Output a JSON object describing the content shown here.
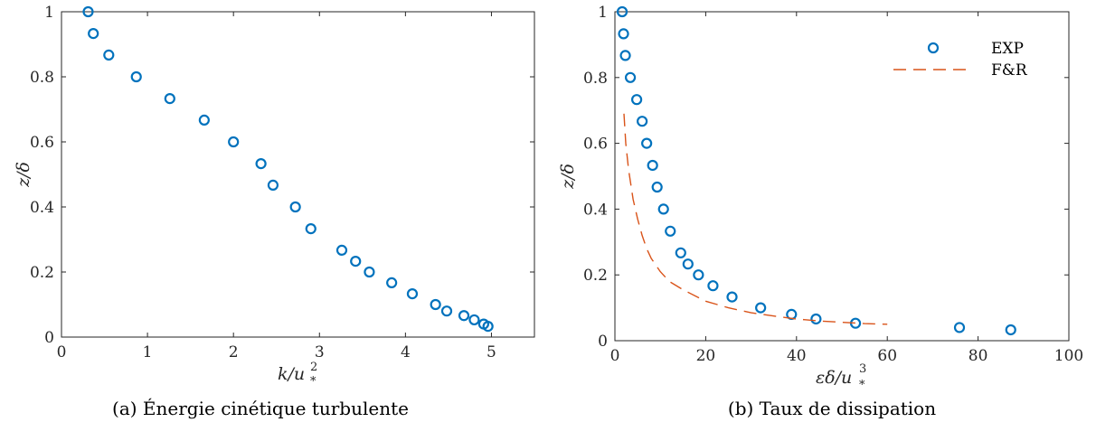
{
  "captions": {
    "a": "(a) Énergie cinétique turbulente",
    "b": "(b) Taux de dissipation"
  },
  "colors": {
    "exp": "#0072BD",
    "fr": "#D95319",
    "axis": "#262626"
  },
  "chart_data": [
    {
      "type": "scatter",
      "xlabel": "k/u²*",
      "ylabel": "z/δ",
      "xlim": [
        0,
        5.5
      ],
      "ylim": [
        0,
        1
      ],
      "xticks": [
        0,
        1,
        2,
        3,
        4,
        5
      ],
      "yticks": [
        0,
        0.2,
        0.4,
        0.6,
        0.8,
        1
      ],
      "series": [
        {
          "marker": "circle",
          "color": "#0072BD",
          "x": [
            0.31,
            0.37,
            0.55,
            0.87,
            1.26,
            1.66,
            2.0,
            2.32,
            2.46,
            2.72,
            2.9,
            3.26,
            3.42,
            3.58,
            3.84,
            4.08,
            4.35,
            4.48,
            4.68,
            4.8,
            4.91,
            4.96
          ],
          "y": [
            1.0,
            0.933,
            0.867,
            0.8,
            0.733,
            0.667,
            0.6,
            0.533,
            0.467,
            0.4,
            0.333,
            0.267,
            0.233,
            0.2,
            0.167,
            0.133,
            0.1,
            0.08,
            0.066,
            0.053,
            0.04,
            0.033
          ]
        }
      ]
    },
    {
      "type": "line",
      "xlabel": "εδ/u³*",
      "ylabel": "z/δ",
      "xlim": [
        0,
        100
      ],
      "ylim": [
        0,
        1
      ],
      "xticks": [
        0,
        20,
        40,
        60,
        80,
        100
      ],
      "yticks": [
        0,
        0.2,
        0.4,
        0.6,
        0.8,
        1
      ],
      "legend_position": "top-right",
      "series": [
        {
          "name": "EXP",
          "marker": "circle",
          "style": "markers",
          "color": "#0072BD",
          "x": [
            1.6,
            1.9,
            2.3,
            3.4,
            4.8,
            6.0,
            7.0,
            8.3,
            9.3,
            10.7,
            12.2,
            14.5,
            16.1,
            18.4,
            21.6,
            25.8,
            32.1,
            38.9,
            44.3,
            53.0,
            75.9,
            87.2
          ],
          "y": [
            1.0,
            0.933,
            0.867,
            0.8,
            0.733,
            0.667,
            0.6,
            0.533,
            0.467,
            0.4,
            0.333,
            0.267,
            0.233,
            0.2,
            0.167,
            0.133,
            0.1,
            0.08,
            0.066,
            0.053,
            0.04,
            0.033
          ]
        },
        {
          "name": "F&R",
          "style": "dashed",
          "color": "#D95319",
          "x": [
            2.0,
            2.4,
            3.0,
            4.0,
            5.0,
            6.0,
            7.0,
            8.0,
            10.0,
            12.0,
            15.0,
            20.0,
            25.0,
            30.0,
            35.0,
            40.0,
            45.0,
            50.0,
            55.0,
            60.0
          ],
          "y": [
            0.69,
            0.6,
            0.52,
            0.43,
            0.37,
            0.32,
            0.28,
            0.25,
            0.21,
            0.18,
            0.155,
            0.12,
            0.1,
            0.085,
            0.075,
            0.066,
            0.06,
            0.056,
            0.052,
            0.05
          ]
        }
      ]
    }
  ]
}
